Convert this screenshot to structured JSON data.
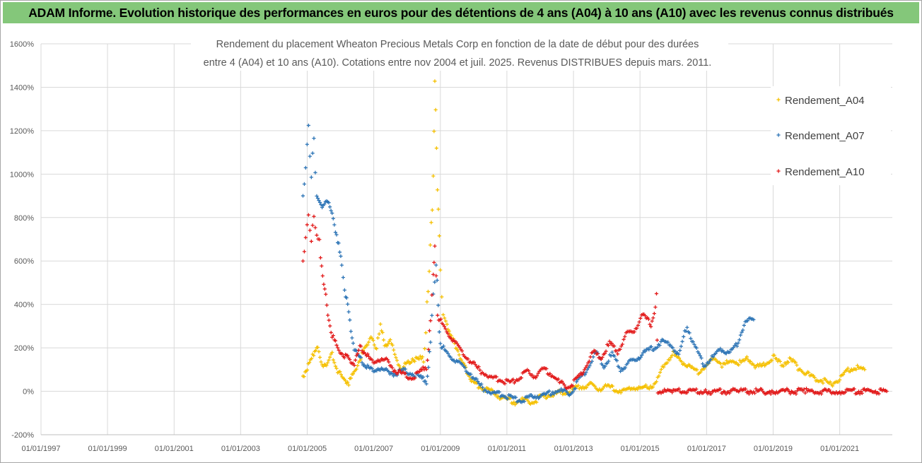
{
  "banner": {
    "title": "ADAM Informe. Evolution historique des performances en euros pour des détentions de 4 ans (A04) à 10 ans (A10) avec les revenus connus distribués"
  },
  "chart_data": {
    "type": "scatter",
    "title_lines": [
      "Rendement du placement Wheaton Precious Metals Corp en fonction de la date de début pour des durées",
      "entre 4 (A04) et 10 ans (A10). Cotations entre nov 2004 et juil. 2025. Revenus DISTRIBUES depuis mars. 2011."
    ],
    "xlabel": "",
    "ylabel": "",
    "x_ticks": [
      "01/01/1997",
      "01/01/1999",
      "01/01/2001",
      "01/01/2003",
      "01/01/2005",
      "01/01/2007",
      "01/01/2009",
      "01/01/2011",
      "01/01/2013",
      "01/01/2015",
      "01/01/2017",
      "01/01/2019",
      "01/01/2021"
    ],
    "y_ticks": [
      "1600%",
      "1400%",
      "1200%",
      "1000%",
      "800%",
      "600%",
      "400%",
      "200%",
      "0%",
      "-200%"
    ],
    "ylim": [
      -200,
      1600
    ],
    "xlim": [
      "1997-01-01",
      "2022-08-01"
    ],
    "grid": true,
    "legend_position": "right",
    "series": [
      {
        "name": "Rendement_A04",
        "color": "#f5c000",
        "points": [
          [
            "2004-11-15",
            70
          ],
          [
            "2005-01-01",
            110
          ],
          [
            "2005-03-01",
            160
          ],
          [
            "2005-04-15",
            210
          ],
          [
            "2005-06-01",
            130
          ],
          [
            "2005-08-01",
            120
          ],
          [
            "2005-10-01",
            170
          ],
          [
            "2005-12-01",
            90
          ],
          [
            "2006-02-01",
            60
          ],
          [
            "2006-04-01",
            40
          ],
          [
            "2006-06-01",
            90
          ],
          [
            "2006-08-01",
            150
          ],
          [
            "2006-10-01",
            200
          ],
          [
            "2006-12-01",
            260
          ],
          [
            "2007-02-01",
            180
          ],
          [
            "2007-03-15",
            320
          ],
          [
            "2007-05-01",
            200
          ],
          [
            "2007-07-01",
            250
          ],
          [
            "2007-09-01",
            150
          ],
          [
            "2007-11-01",
            100
          ],
          [
            "2008-01-01",
            130
          ],
          [
            "2008-03-01",
            150
          ],
          [
            "2008-05-01",
            140
          ],
          [
            "2008-07-01",
            170
          ],
          [
            "2008-09-01",
            500
          ],
          [
            "2008-10-15",
            1000
          ],
          [
            "2008-11-01",
            1410
          ],
          [
            "2008-11-20",
            1120
          ],
          [
            "2008-12-10",
            820
          ],
          [
            "2009-01-01",
            580
          ],
          [
            "2009-02-01",
            350
          ],
          [
            "2009-03-15",
            310
          ],
          [
            "2009-05-01",
            250
          ],
          [
            "2009-07-01",
            200
          ],
          [
            "2009-09-01",
            130
          ],
          [
            "2009-11-01",
            80
          ],
          [
            "2010-01-01",
            40
          ],
          [
            "2010-04-01",
            20
          ],
          [
            "2010-07-01",
            0
          ],
          [
            "2010-10-01",
            -20
          ],
          [
            "2011-01-01",
            -40
          ],
          [
            "2011-04-01",
            -50
          ],
          [
            "2011-07-01",
            -40
          ],
          [
            "2011-10-01",
            -50
          ],
          [
            "2012-01-01",
            -30
          ],
          [
            "2012-04-01",
            -20
          ],
          [
            "2012-07-01",
            -10
          ],
          [
            "2012-10-01",
            0
          ],
          [
            "2013-01-01",
            10
          ],
          [
            "2013-04-01",
            20
          ],
          [
            "2013-07-01",
            30
          ],
          [
            "2013-10-01",
            10
          ],
          [
            "2014-01-01",
            20
          ],
          [
            "2014-04-01",
            10
          ],
          [
            "2014-07-01",
            0
          ],
          [
            "2014-10-01",
            20
          ],
          [
            "2015-01-01",
            10
          ],
          [
            "2015-04-01",
            20
          ],
          [
            "2015-07-01",
            40
          ],
          [
            "2015-10-01",
            130
          ],
          [
            "2016-01-01",
            170
          ],
          [
            "2016-04-01",
            140
          ],
          [
            "2016-07-01",
            110
          ],
          [
            "2016-10-01",
            90
          ],
          [
            "2017-01-01",
            120
          ],
          [
            "2017-04-01",
            150
          ],
          [
            "2017-07-01",
            120
          ],
          [
            "2017-10-01",
            140
          ],
          [
            "2018-01-01",
            130
          ],
          [
            "2018-04-01",
            150
          ],
          [
            "2018-07-01",
            110
          ],
          [
            "2018-10-01",
            120
          ],
          [
            "2019-01-01",
            160
          ],
          [
            "2019-04-01",
            120
          ],
          [
            "2019-07-01",
            150
          ],
          [
            "2019-10-01",
            110
          ],
          [
            "2020-01-01",
            80
          ],
          [
            "2020-04-01",
            60
          ],
          [
            "2020-07-01",
            50
          ],
          [
            "2020-10-01",
            30
          ],
          [
            "2021-01-01",
            60
          ],
          [
            "2021-04-01",
            100
          ],
          [
            "2021-07-01",
            110
          ],
          [
            "2021-10-01",
            100
          ]
        ]
      },
      {
        "name": "Rendement_A07",
        "color": "#2e75b6",
        "points": [
          [
            "2004-11-15",
            900
          ],
          [
            "2004-12-15",
            1050
          ],
          [
            "2005-01-15",
            1200
          ],
          [
            "2005-02-15",
            1000
          ],
          [
            "2005-03-15",
            1150
          ],
          [
            "2005-04-15",
            900
          ],
          [
            "2005-06-01",
            850
          ],
          [
            "2005-08-01",
            880
          ],
          [
            "2005-10-01",
            820
          ],
          [
            "2005-12-01",
            700
          ],
          [
            "2006-01-15",
            580
          ],
          [
            "2006-02-15",
            480
          ],
          [
            "2006-04-01",
            360
          ],
          [
            "2006-06-01",
            200
          ],
          [
            "2006-08-01",
            150
          ],
          [
            "2006-10-01",
            120
          ],
          [
            "2006-12-01",
            100
          ],
          [
            "2007-03-01",
            110
          ],
          [
            "2007-06-01",
            90
          ],
          [
            "2007-09-01",
            80
          ],
          [
            "2007-12-01",
            100
          ],
          [
            "2008-03-01",
            80
          ],
          [
            "2008-06-01",
            60
          ],
          [
            "2008-08-01",
            50
          ],
          [
            "2008-09-15",
            200
          ],
          [
            "2008-10-15",
            450
          ],
          [
            "2008-11-15",
            560
          ],
          [
            "2009-01-01",
            220
          ],
          [
            "2009-03-01",
            180
          ],
          [
            "2009-06-01",
            150
          ],
          [
            "2009-09-01",
            120
          ],
          [
            "2009-12-01",
            80
          ],
          [
            "2010-03-01",
            30
          ],
          [
            "2010-06-01",
            0
          ],
          [
            "2010-09-01",
            -10
          ],
          [
            "2010-12-01",
            -20
          ],
          [
            "2011-03-01",
            -30
          ],
          [
            "2011-06-01",
            -40
          ],
          [
            "2011-09-01",
            -30
          ],
          [
            "2011-12-01",
            -20
          ],
          [
            "2012-03-01",
            -20
          ],
          [
            "2012-06-01",
            0
          ],
          [
            "2012-09-01",
            0
          ],
          [
            "2012-12-01",
            -10
          ],
          [
            "2013-03-01",
            50
          ],
          [
            "2013-06-01",
            100
          ],
          [
            "2013-09-01",
            180
          ],
          [
            "2013-12-01",
            120
          ],
          [
            "2014-03-01",
            170
          ],
          [
            "2014-06-01",
            100
          ],
          [
            "2014-09-01",
            130
          ],
          [
            "2014-12-01",
            150
          ],
          [
            "2015-03-01",
            180
          ],
          [
            "2015-06-01",
            200
          ],
          [
            "2015-09-01",
            230
          ],
          [
            "2015-12-01",
            220
          ],
          [
            "2016-03-01",
            160
          ],
          [
            "2016-06-01",
            300
          ],
          [
            "2016-09-01",
            200
          ],
          [
            "2016-12-01",
            120
          ],
          [
            "2017-03-01",
            150
          ],
          [
            "2017-06-01",
            200
          ],
          [
            "2017-09-01",
            170
          ],
          [
            "2017-12-01",
            220
          ],
          [
            "2018-03-01",
            320
          ],
          [
            "2018-06-01",
            330
          ]
        ]
      },
      {
        "name": "Rendement_A10",
        "color": "#e21a1a",
        "points": [
          [
            "2004-11-15",
            600
          ],
          [
            "2004-12-15",
            720
          ],
          [
            "2005-01-15",
            800
          ],
          [
            "2005-02-15",
            700
          ],
          [
            "2005-03-15",
            800
          ],
          [
            "2005-04-15",
            720
          ],
          [
            "2005-05-15",
            680
          ],
          [
            "2005-07-01",
            500
          ],
          [
            "2005-08-15",
            350
          ],
          [
            "2005-10-01",
            260
          ],
          [
            "2005-12-01",
            200
          ],
          [
            "2006-02-01",
            170
          ],
          [
            "2006-04-01",
            150
          ],
          [
            "2006-06-01",
            130
          ],
          [
            "2006-08-01",
            200
          ],
          [
            "2006-10-01",
            180
          ],
          [
            "2006-12-01",
            140
          ],
          [
            "2007-03-01",
            150
          ],
          [
            "2007-06-01",
            140
          ],
          [
            "2007-09-01",
            90
          ],
          [
            "2007-12-01",
            80
          ],
          [
            "2008-03-01",
            60
          ],
          [
            "2008-06-01",
            90
          ],
          [
            "2008-08-01",
            120
          ],
          [
            "2008-09-15",
            300
          ],
          [
            "2008-10-15",
            540
          ],
          [
            "2008-11-01",
            650
          ],
          [
            "2008-12-01",
            350
          ],
          [
            "2009-02-01",
            300
          ],
          [
            "2009-05-01",
            250
          ],
          [
            "2009-08-01",
            200
          ],
          [
            "2009-11-01",
            150
          ],
          [
            "2010-02-01",
            110
          ],
          [
            "2010-05-01",
            80
          ],
          [
            "2010-08-01",
            60
          ],
          [
            "2010-11-01",
            50
          ],
          [
            "2011-02-01",
            40
          ],
          [
            "2011-05-01",
            60
          ],
          [
            "2011-08-01",
            90
          ],
          [
            "2011-11-01",
            70
          ],
          [
            "2012-02-01",
            100
          ],
          [
            "2012-05-01",
            80
          ],
          [
            "2012-08-01",
            40
          ],
          [
            "2012-11-01",
            20
          ],
          [
            "2013-02-01",
            50
          ],
          [
            "2013-05-01",
            100
          ],
          [
            "2013-08-01",
            180
          ],
          [
            "2013-11-01",
            160
          ],
          [
            "2014-02-01",
            220
          ],
          [
            "2014-05-01",
            180
          ],
          [
            "2014-08-01",
            260
          ],
          [
            "2014-11-01",
            280
          ],
          [
            "2015-02-01",
            350
          ],
          [
            "2015-05-01",
            310
          ],
          [
            "2015-07-01",
            410
          ],
          [
            "2015-07-15",
            0
          ],
          [
            "2016-01-01",
            0
          ],
          [
            "2017-01-01",
            0
          ],
          [
            "2018-01-01",
            0
          ],
          [
            "2019-01-01",
            0
          ],
          [
            "2020-01-01",
            0
          ],
          [
            "2021-01-01",
            0
          ],
          [
            "2022-06-01",
            0
          ]
        ]
      }
    ]
  }
}
